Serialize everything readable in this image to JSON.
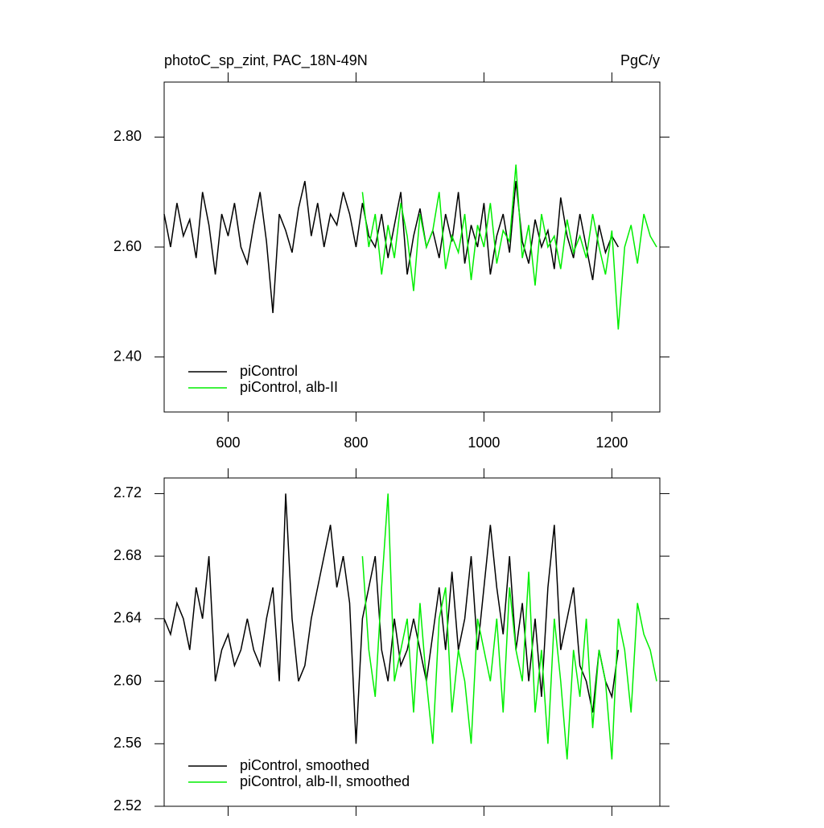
{
  "chart_data": [
    {
      "type": "line",
      "title": "photoC_sp_zint, PAC_18N-49N",
      "units": "PgC/y",
      "xlim": [
        500,
        1275
      ],
      "xticks": [
        600,
        800,
        1000,
        1200
      ],
      "ylim": [
        2.3,
        2.9
      ],
      "yticks": [
        {
          "value": 2.4,
          "label": "2.40"
        },
        {
          "value": 2.6,
          "label": "2.60"
        },
        {
          "value": 2.8,
          "label": "2.80"
        }
      ],
      "legend": "lower left",
      "series": [
        {
          "name": "piControl",
          "color": "#000000",
          "x": [
            500,
            510,
            520,
            530,
            540,
            550,
            560,
            570,
            580,
            590,
            600,
            610,
            620,
            630,
            640,
            650,
            660,
            670,
            680,
            690,
            700,
            710,
            720,
            730,
            740,
            750,
            760,
            770,
            780,
            790,
            800,
            810,
            820,
            830,
            840,
            850,
            860,
            870,
            880,
            890,
            900,
            910,
            920,
            930,
            940,
            950,
            960,
            970,
            980,
            990,
            1000,
            1010,
            1020,
            1030,
            1040,
            1050,
            1060,
            1070,
            1080,
            1090,
            1100,
            1110,
            1120,
            1130,
            1140,
            1150,
            1160,
            1170,
            1180,
            1190,
            1200,
            1210
          ],
          "values": [
            2.66,
            2.6,
            2.68,
            2.62,
            2.65,
            2.58,
            2.7,
            2.64,
            2.55,
            2.66,
            2.62,
            2.68,
            2.6,
            2.57,
            2.64,
            2.7,
            2.61,
            2.48,
            2.66,
            2.63,
            2.59,
            2.67,
            2.72,
            2.62,
            2.68,
            2.6,
            2.66,
            2.64,
            2.7,
            2.66,
            2.6,
            2.68,
            2.62,
            2.6,
            2.66,
            2.58,
            2.64,
            2.7,
            2.55,
            2.62,
            2.67,
            2.6,
            2.63,
            2.58,
            2.66,
            2.61,
            2.7,
            2.57,
            2.64,
            2.6,
            2.68,
            2.55,
            2.62,
            2.66,
            2.59,
            2.72,
            2.61,
            2.57,
            2.65,
            2.6,
            2.63,
            2.56,
            2.69,
            2.62,
            2.58,
            2.66,
            2.6,
            2.54,
            2.64,
            2.59,
            2.62,
            2.6
          ]
        },
        {
          "name": "piControl, alb-II",
          "color": "#00ee00",
          "x": [
            810,
            820,
            830,
            840,
            850,
            860,
            870,
            880,
            890,
            900,
            910,
            920,
            930,
            940,
            950,
            960,
            970,
            980,
            990,
            1000,
            1010,
            1020,
            1030,
            1040,
            1050,
            1060,
            1070,
            1080,
            1090,
            1100,
            1110,
            1120,
            1130,
            1140,
            1150,
            1160,
            1170,
            1180,
            1190,
            1200,
            1210,
            1220,
            1230,
            1240,
            1250,
            1260,
            1270
          ],
          "values": [
            2.7,
            2.6,
            2.66,
            2.55,
            2.64,
            2.58,
            2.68,
            2.62,
            2.52,
            2.66,
            2.6,
            2.63,
            2.7,
            2.56,
            2.62,
            2.59,
            2.66,
            2.54,
            2.64,
            2.6,
            2.68,
            2.57,
            2.63,
            2.61,
            2.75,
            2.58,
            2.64,
            2.53,
            2.66,
            2.6,
            2.62,
            2.56,
            2.65,
            2.59,
            2.62,
            2.58,
            2.66,
            2.6,
            2.55,
            2.63,
            2.45,
            2.6,
            2.64,
            2.57,
            2.66,
            2.62,
            2.6
          ]
        }
      ]
    },
    {
      "type": "line",
      "xlim": [
        500,
        1275
      ],
      "xticks": [
        600,
        800,
        1000,
        1200
      ],
      "ylim": [
        2.52,
        2.73
      ],
      "yticks": [
        {
          "value": 2.52,
          "label": "2.52"
        },
        {
          "value": 2.56,
          "label": "2.56"
        },
        {
          "value": 2.6,
          "label": "2.60"
        },
        {
          "value": 2.64,
          "label": "2.64"
        },
        {
          "value": 2.68,
          "label": "2.68"
        },
        {
          "value": 2.72,
          "label": "2.72"
        }
      ],
      "legend": "lower left",
      "series": [
        {
          "name": "piControl, smoothed",
          "color": "#000000",
          "x": [
            500,
            510,
            520,
            530,
            540,
            550,
            560,
            570,
            580,
            590,
            600,
            610,
            620,
            630,
            640,
            650,
            660,
            670,
            680,
            690,
            700,
            710,
            720,
            730,
            740,
            750,
            760,
            770,
            780,
            790,
            800,
            810,
            820,
            830,
            840,
            850,
            860,
            870,
            880,
            890,
            900,
            910,
            920,
            930,
            940,
            950,
            960,
            970,
            980,
            990,
            1000,
            1010,
            1020,
            1030,
            1040,
            1050,
            1060,
            1070,
            1080,
            1090,
            1100,
            1110,
            1120,
            1130,
            1140,
            1150,
            1160,
            1170,
            1180,
            1190,
            1200,
            1210
          ],
          "values": [
            2.64,
            2.63,
            2.65,
            2.64,
            2.62,
            2.66,
            2.64,
            2.68,
            2.6,
            2.62,
            2.63,
            2.61,
            2.62,
            2.64,
            2.62,
            2.61,
            2.64,
            2.66,
            2.6,
            2.72,
            2.64,
            2.6,
            2.61,
            2.64,
            2.66,
            2.68,
            2.7,
            2.66,
            2.68,
            2.65,
            2.56,
            2.64,
            2.66,
            2.68,
            2.62,
            2.6,
            2.64,
            2.61,
            2.62,
            2.64,
            2.62,
            2.6,
            2.63,
            2.66,
            2.62,
            2.67,
            2.62,
            2.64,
            2.68,
            2.62,
            2.66,
            2.7,
            2.66,
            2.63,
            2.68,
            2.62,
            2.65,
            2.6,
            2.64,
            2.59,
            2.66,
            2.7,
            2.62,
            2.64,
            2.66,
            2.61,
            2.6,
            2.58,
            2.62,
            2.6,
            2.59,
            2.62
          ]
        },
        {
          "name": "piControl, alb-II, smoothed",
          "color": "#00ee00",
          "x": [
            810,
            820,
            830,
            840,
            850,
            860,
            870,
            880,
            890,
            900,
            910,
            920,
            930,
            940,
            950,
            960,
            970,
            980,
            990,
            1000,
            1010,
            1020,
            1030,
            1040,
            1050,
            1060,
            1070,
            1080,
            1090,
            1100,
            1110,
            1120,
            1130,
            1140,
            1150,
            1160,
            1170,
            1180,
            1190,
            1200,
            1210,
            1220,
            1230,
            1240,
            1250,
            1260,
            1270
          ],
          "values": [
            2.68,
            2.62,
            2.59,
            2.66,
            2.72,
            2.6,
            2.62,
            2.64,
            2.58,
            2.65,
            2.6,
            2.56,
            2.64,
            2.66,
            2.58,
            2.62,
            2.6,
            2.56,
            2.64,
            2.62,
            2.6,
            2.64,
            2.58,
            2.66,
            2.62,
            2.6,
            2.67,
            2.58,
            2.62,
            2.56,
            2.64,
            2.6,
            2.55,
            2.62,
            2.59,
            2.64,
            2.57,
            2.62,
            2.6,
            2.55,
            2.64,
            2.62,
            2.58,
            2.65,
            2.63,
            2.62,
            2.6
          ]
        }
      ]
    }
  ]
}
